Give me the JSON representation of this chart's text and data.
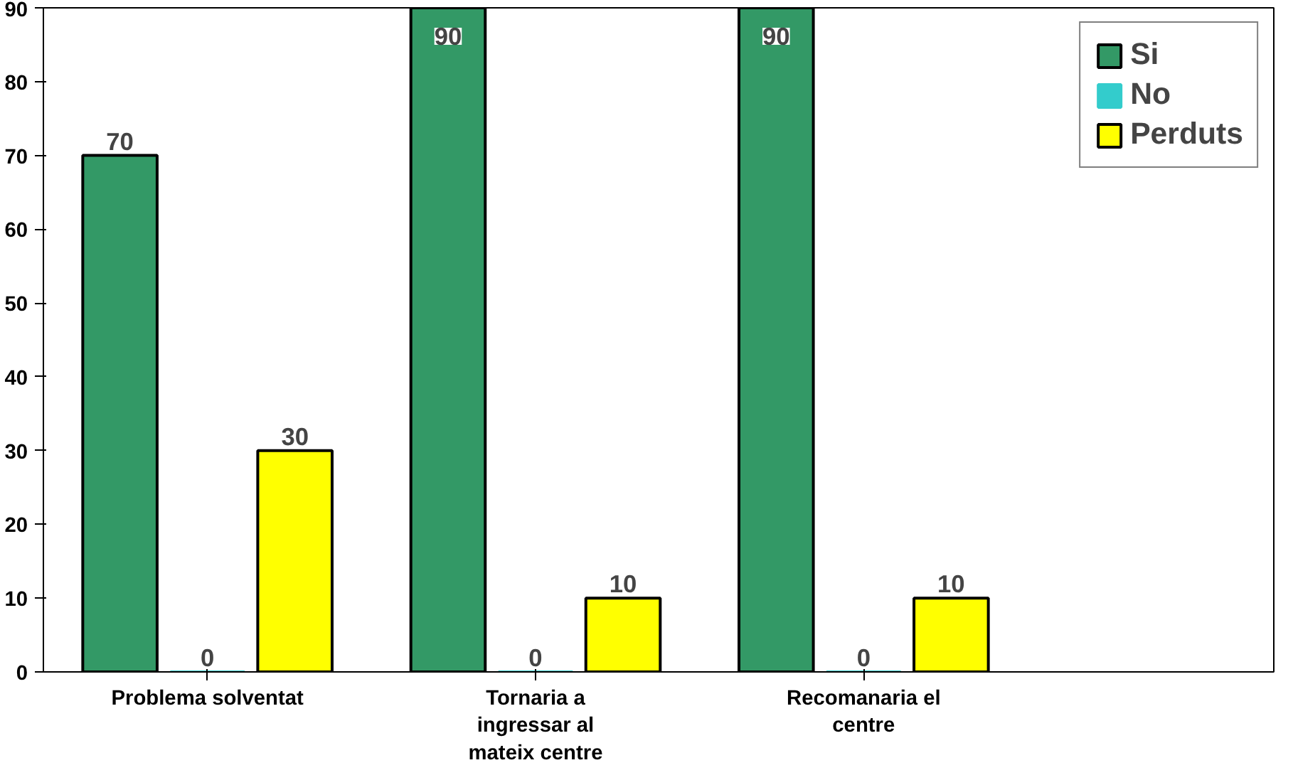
{
  "chart_data": {
    "type": "bar",
    "categories": [
      "Problema solventat",
      "Tornaria a ingressar al mateix centre",
      "Recomanaria el centre"
    ],
    "series": [
      {
        "name": "Si",
        "color": "#339966",
        "values": [
          70,
          90,
          90
        ]
      },
      {
        "name": "No",
        "color": "#33cccc",
        "values": [
          0,
          0,
          0
        ]
      },
      {
        "name": "Perduts",
        "color": "#ffff00",
        "values": [
          30,
          10,
          10
        ]
      }
    ],
    "ylim": [
      0,
      90
    ],
    "yticks": [
      0,
      10,
      20,
      30,
      40,
      50,
      60,
      70,
      80,
      90
    ],
    "grid": false,
    "legend": "right",
    "data_labels": true
  }
}
